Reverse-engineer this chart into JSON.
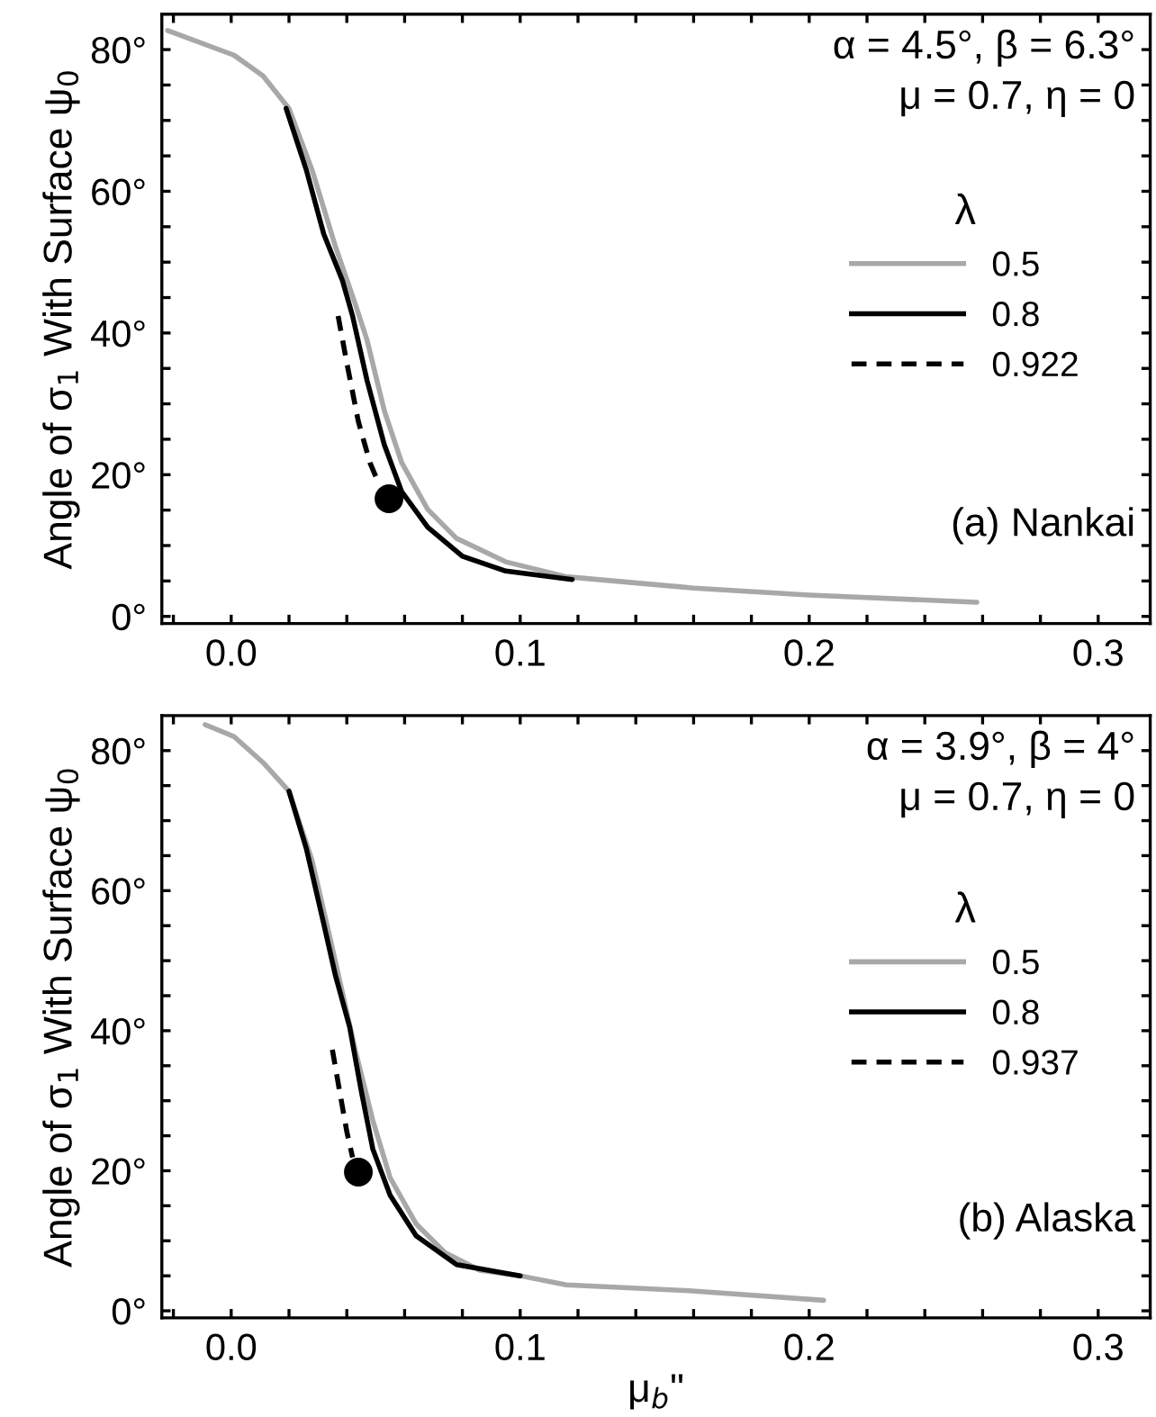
{
  "chart_data": [
    {
      "type": "line",
      "ylabel": "Angle of σ$_{1}$ With Surface ψ$_{0}$",
      "legend_title": "λ",
      "legend": "right",
      "annotations": [
        "α = 4.5°, β = 6.3°\nμ = 0.7, η = 0",
        "(a) Nankai"
      ],
      "xlim": [
        -0.024,
        0.318
      ],
      "ylim": [
        -1,
        85
      ],
      "xticks": [
        {
          "value": 0.0,
          "label": "0.0"
        },
        0.1,
        0.2,
        0.3,
        {
          "value": -0.02,
          "label": null
        },
        {
          "value": 0.02,
          "label": null
        },
        {
          "value": 0.04,
          "label": null
        },
        {
          "value": 0.06,
          "label": null
        },
        {
          "value": 0.08,
          "label": null
        },
        {
          "value": 0.12,
          "label": null
        },
        {
          "value": 0.14,
          "label": null
        },
        {
          "value": 0.16,
          "label": null
        },
        {
          "value": 0.18,
          "label": null
        },
        {
          "value": 0.22,
          "label": null
        },
        {
          "value": 0.24,
          "label": null
        },
        {
          "value": 0.26,
          "label": null
        },
        {
          "value": 0.28,
          "label": null
        }
      ],
      "yticks": [
        {
          "value": 0,
          "label": "0°"
        },
        {
          "value": 20,
          "label": "20°"
        },
        {
          "value": 40,
          "label": "40°"
        },
        {
          "value": 60,
          "label": "60°"
        },
        {
          "value": 80,
          "label": "80°"
        },
        {
          "value": 5,
          "label": null
        },
        {
          "value": 10,
          "label": null
        },
        {
          "value": 15,
          "label": null
        },
        {
          "value": 25,
          "label": null
        },
        {
          "value": 30,
          "label": null
        },
        {
          "value": 35,
          "label": null
        },
        {
          "value": 45,
          "label": null
        },
        {
          "value": 50,
          "label": null
        },
        {
          "value": 55,
          "label": null
        },
        {
          "value": 65,
          "label": null
        },
        {
          "value": 70,
          "label": null
        },
        {
          "value": 75,
          "label": null
        }
      ],
      "series": [
        {
          "name": "0.5",
          "color": "#a8a8a8",
          "line_style": "solid",
          "x": [
            -0.022,
            0.001,
            0.011,
            0.02,
            0.028,
            0.036,
            0.043,
            0.047,
            0.053,
            0.059,
            0.068,
            0.078,
            0.095,
            0.116,
            0.16,
            0.2,
            0.258
          ],
          "values": [
            82.7,
            79.2,
            76.3,
            71.7,
            63,
            52.3,
            44,
            39,
            29,
            21.7,
            15.1,
            11,
            7.7,
            5.6,
            4,
            3,
            2
          ]
        },
        {
          "name": "0.8",
          "color": "#000000",
          "line_style": "solid",
          "x": [
            0.019,
            0.026,
            0.032,
            0.0385,
            0.042,
            0.047,
            0.053,
            0.059,
            0.068,
            0.08,
            0.095,
            0.118
          ],
          "values": [
            71.7,
            63,
            54,
            47.4,
            42.4,
            33.3,
            24.2,
            17.6,
            12.6,
            8.5,
            6.4,
            5.2
          ]
        },
        {
          "name": "0.922",
          "color": "#000000",
          "line_style": "dashed",
          "x": [
            0.037,
            0.04,
            0.044,
            0.048,
            0.051
          ],
          "values": [
            42.4,
            35.8,
            27.5,
            21.7,
            18.8
          ]
        },
        {
          "type": "scatter",
          "marker": "circle",
          "color": "#000000",
          "x": [
            0.0546
          ],
          "values": [
            16.6
          ]
        }
      ]
    },
    {
      "type": "line",
      "ylabel": "Angle of σ$_{1}$ With Surface ψ$_{0}$",
      "xlabel": "μ$_{b}$\"",
      "legend_title": "λ",
      "legend": "right",
      "annotations": [
        "α = 3.9°, β = 4°\nμ = 0.7, η = 0",
        "(b) Alaska"
      ],
      "xlim": [
        -0.024,
        0.318
      ],
      "ylim": [
        -1,
        85
      ],
      "xticks": [
        {
          "value": 0.0,
          "label": "0.0"
        },
        0.1,
        0.2,
        0.3,
        {
          "value": -0.02,
          "label": null
        },
        {
          "value": 0.02,
          "label": null
        },
        {
          "value": 0.04,
          "label": null
        },
        {
          "value": 0.06,
          "label": null
        },
        {
          "value": 0.08,
          "label": null
        },
        {
          "value": 0.12,
          "label": null
        },
        {
          "value": 0.14,
          "label": null
        },
        {
          "value": 0.16,
          "label": null
        },
        {
          "value": 0.18,
          "label": null
        },
        {
          "value": 0.22,
          "label": null
        },
        {
          "value": 0.24,
          "label": null
        },
        {
          "value": 0.26,
          "label": null
        },
        {
          "value": 0.28,
          "label": null
        }
      ],
      "yticks": [
        {
          "value": 0,
          "label": "0°"
        },
        {
          "value": 20,
          "label": "20°"
        },
        {
          "value": 40,
          "label": "40°"
        },
        {
          "value": 60,
          "label": "60°"
        },
        {
          "value": 80,
          "label": "80°"
        },
        {
          "value": 5,
          "label": null
        },
        {
          "value": 10,
          "label": null
        },
        {
          "value": 15,
          "label": null
        },
        {
          "value": 25,
          "label": null
        },
        {
          "value": 30,
          "label": null
        },
        {
          "value": 35,
          "label": null
        },
        {
          "value": 45,
          "label": null
        },
        {
          "value": 50,
          "label": null
        },
        {
          "value": 55,
          "label": null
        },
        {
          "value": 65,
          "label": null
        },
        {
          "value": 70,
          "label": null
        },
        {
          "value": 75,
          "label": null
        }
      ],
      "series": [
        {
          "name": "0.5",
          "color": "#a8a8a8",
          "line_style": "solid",
          "x": [
            -0.009,
            0.001,
            0.011,
            0.02,
            0.028,
            0.034,
            0.0385,
            0.043,
            0.049,
            0.055,
            0.064,
            0.074,
            0.086,
            0.1,
            0.116,
            0.157,
            0.205
          ],
          "values": [
            83.7,
            82,
            78.3,
            74.2,
            64.3,
            53.6,
            45.4,
            37.1,
            27.2,
            19,
            12.4,
            8.3,
            5.8,
            5,
            3.7,
            2.9,
            1.5
          ]
        },
        {
          "name": "0.8",
          "color": "#000000",
          "line_style": "solid",
          "x": [
            0.02,
            0.026,
            0.032,
            0.036,
            0.041,
            0.045,
            0.049,
            0.055,
            0.064,
            0.078,
            0.1
          ],
          "values": [
            74.2,
            66,
            55.3,
            48,
            40.5,
            31.4,
            23.1,
            16.5,
            10.7,
            6.6,
            5
          ]
        },
        {
          "name": "0.937",
          "color": "#000000",
          "line_style": "dashed",
          "x": [
            0.035,
            0.0375,
            0.04,
            0.042
          ],
          "values": [
            37.3,
            31.4,
            25.6,
            21.9
          ]
        },
        {
          "type": "scatter",
          "marker": "circle",
          "color": "#000000",
          "x": [
            0.044
          ],
          "values": [
            19.8
          ]
        }
      ]
    }
  ]
}
